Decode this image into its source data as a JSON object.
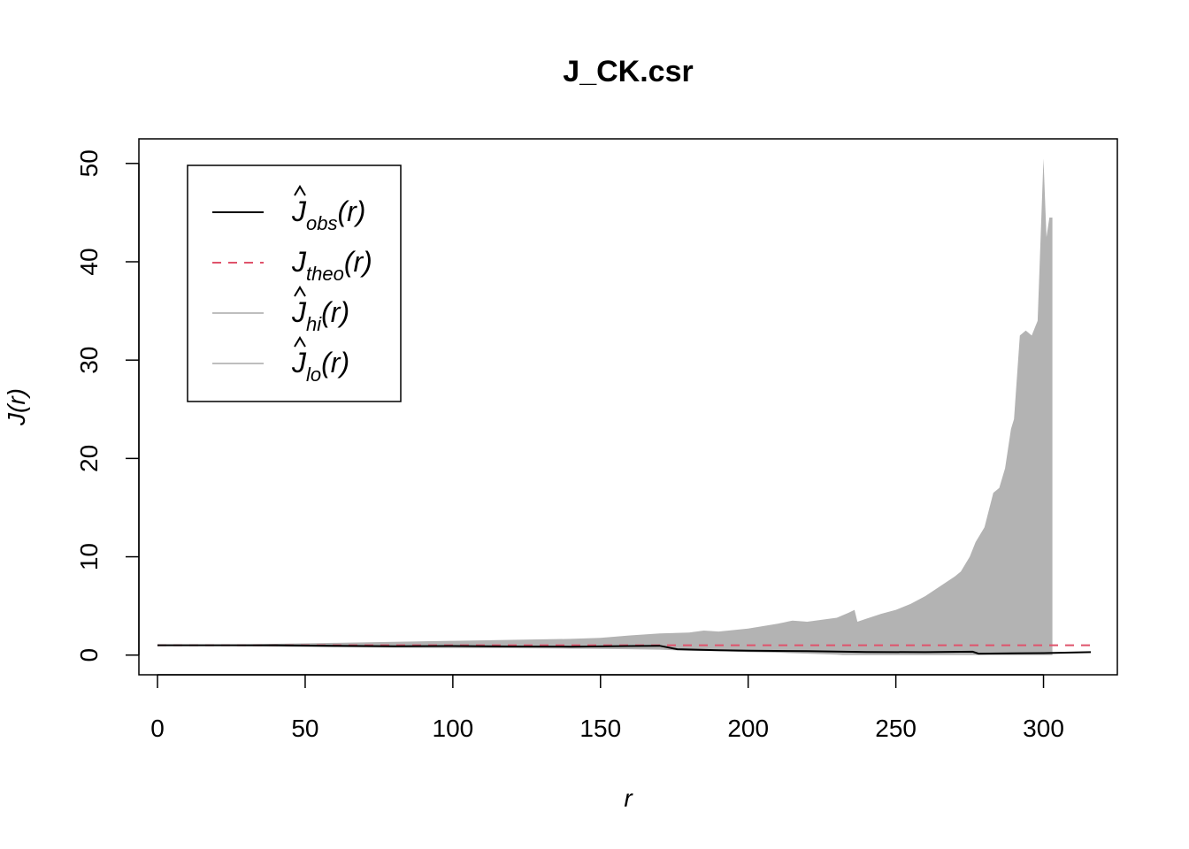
{
  "chart_data": {
    "type": "area",
    "title": "J_CK.csr",
    "xlabel": "r",
    "ylabel": "J(r)",
    "xlim": [
      -6.3,
      325
    ],
    "ylim": [
      -2,
      52.5
    ],
    "x_ticks": [
      0,
      50,
      100,
      150,
      200,
      250,
      300
    ],
    "y_ticks": [
      0,
      10,
      20,
      30,
      40,
      50
    ],
    "x_tick_labels": [
      "0",
      "50",
      "100",
      "150",
      "200",
      "250",
      "300"
    ],
    "y_tick_labels": [
      "0",
      "10",
      "20",
      "30",
      "40",
      "50"
    ],
    "grid": false,
    "legend_position": "top-left",
    "legend": [
      {
        "symbol": "J",
        "hat": true,
        "sub": "obs",
        "arg": "(r)",
        "color": "#000000",
        "dash": "solid"
      },
      {
        "symbol": "J",
        "hat": false,
        "sub": "theo",
        "arg": "(r)",
        "color": "#DF536B",
        "dash": "dashed"
      },
      {
        "symbol": "J",
        "hat": true,
        "sub": "hi",
        "arg": "(r)",
        "color": "#BEBEBE",
        "dash": "solid"
      },
      {
        "symbol": "J",
        "hat": true,
        "sub": "lo",
        "arg": "(r)",
        "color": "#BEBEBE",
        "dash": "solid"
      }
    ],
    "envelope_color": "#B3B3B3",
    "series": [
      {
        "name": "obs",
        "color": "#000000",
        "x": [
          0,
          20,
          40,
          60,
          80,
          100,
          120,
          140,
          160,
          170,
          176,
          190,
          200,
          220,
          240,
          260,
          276,
          278,
          300,
          316
        ],
        "values": [
          1.0,
          1.0,
          1.0,
          0.95,
          0.9,
          0.92,
          0.88,
          0.86,
          0.92,
          0.95,
          0.6,
          0.5,
          0.45,
          0.4,
          0.32,
          0.3,
          0.35,
          0.15,
          0.2,
          0.3
        ]
      },
      {
        "name": "theo",
        "color": "#DF536B",
        "x": [
          0,
          316
        ],
        "values": [
          1.0,
          1.0
        ]
      },
      {
        "name": "hi",
        "color": "#B3B3B3",
        "x": [
          0,
          20,
          40,
          60,
          80,
          100,
          120,
          140,
          150,
          160,
          170,
          180,
          185,
          190,
          200,
          210,
          215,
          220,
          225,
          230,
          234,
          236,
          237,
          240,
          245,
          250,
          255,
          260,
          265,
          270,
          272,
          275,
          277,
          280,
          283,
          285,
          287,
          289,
          290,
          292,
          294,
          296,
          298,
          300,
          301,
          302,
          303
        ],
        "values": [
          1.0,
          1.05,
          1.15,
          1.25,
          1.35,
          1.45,
          1.55,
          1.65,
          1.75,
          2.0,
          2.2,
          2.3,
          2.5,
          2.4,
          2.7,
          3.2,
          3.5,
          3.4,
          3.6,
          3.8,
          4.3,
          4.6,
          3.4,
          3.7,
          4.2,
          4.6,
          5.2,
          6.0,
          7.0,
          8.0,
          8.5,
          10.0,
          11.5,
          13.0,
          16.5,
          17.0,
          19.0,
          23.0,
          24.0,
          32.5,
          33.0,
          32.5,
          34.0,
          50.5,
          42.5,
          44.5,
          44.5
        ]
      },
      {
        "name": "lo",
        "color": "#B3B3B3",
        "x": [
          0,
          20,
          40,
          60,
          80,
          100,
          120,
          140,
          160,
          170,
          180,
          190,
          200,
          210,
          220,
          230,
          232,
          240,
          250,
          260,
          270,
          280,
          290,
          300,
          303
        ],
        "values": [
          1.0,
          0.95,
          0.85,
          0.8,
          0.75,
          0.72,
          0.7,
          0.65,
          0.6,
          0.55,
          0.45,
          0.4,
          0.3,
          0.25,
          0.15,
          0.05,
          0.0,
          0.0,
          0.0,
          0.0,
          0.0,
          0.0,
          0.0,
          0.0,
          0.0
        ]
      }
    ]
  }
}
